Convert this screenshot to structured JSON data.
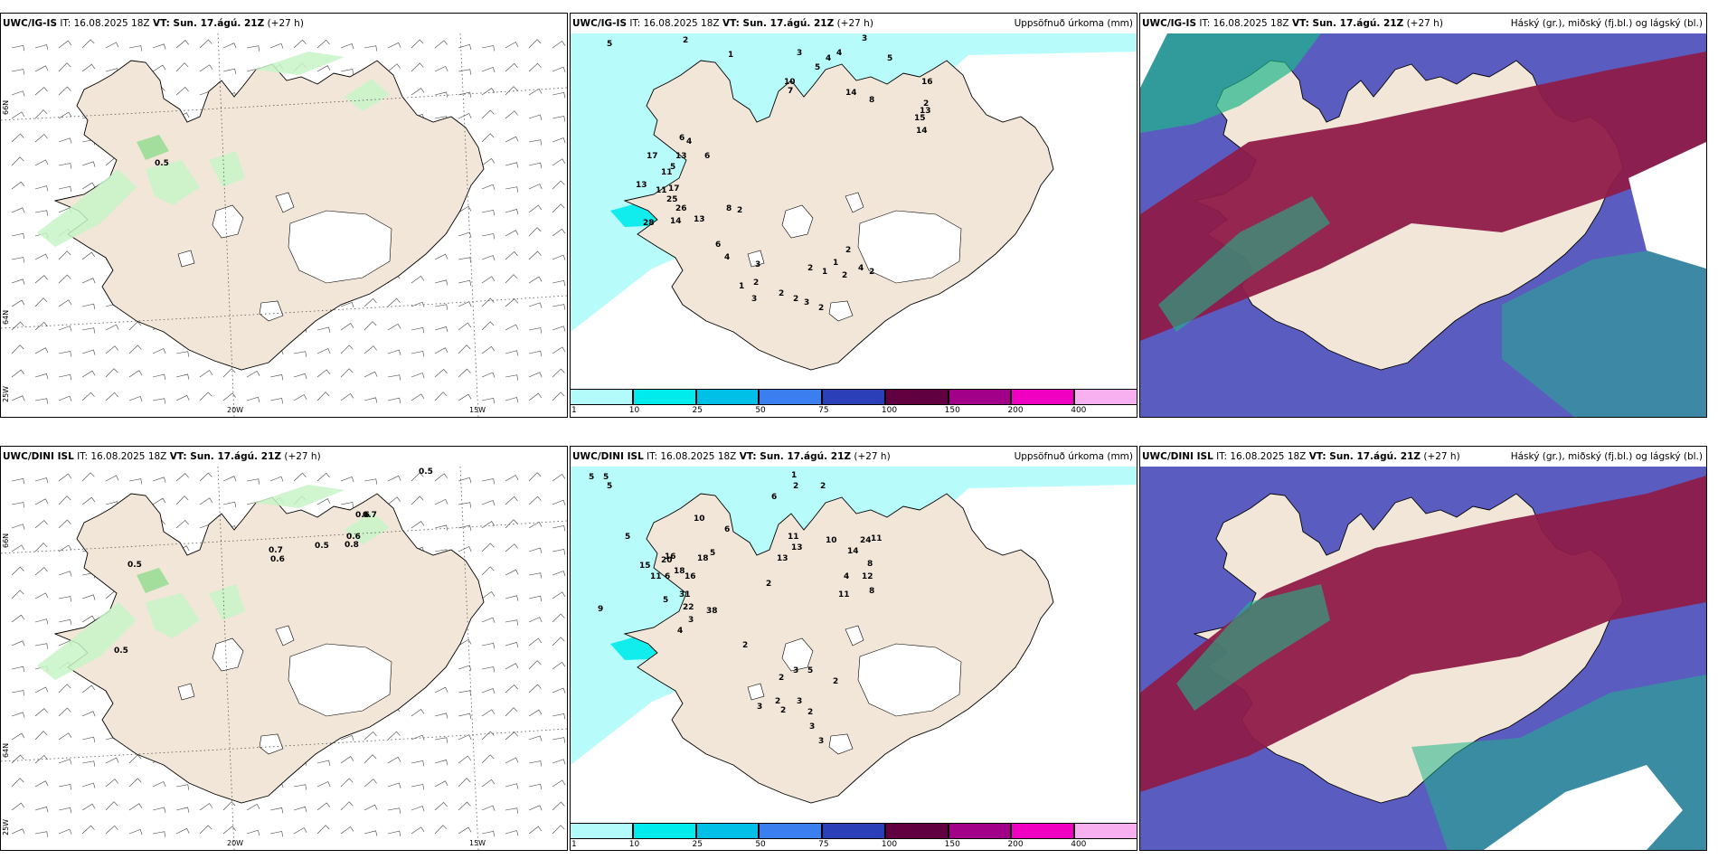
{
  "rows": [
    {
      "model": "UWC/IG-IS",
      "it": "IT: 16.08.2025 18Z",
      "vt_label": "VT: Sun. 17.ágú. 21Z",
      "lead": "(+27 h)",
      "wind_panel": {
        "contours": [
          "0.5"
        ]
      },
      "precip_panel": {
        "title": "Uppsöfnuð úrkoma (mm)",
        "labels": [
          "5",
          "2",
          "1",
          "3",
          "3",
          "4",
          "4",
          "5",
          "5",
          "10",
          "7",
          "14",
          "16",
          "2",
          "8",
          "13",
          "15",
          "14",
          "17",
          "13",
          "6",
          "5",
          "4",
          "11",
          "11",
          "17",
          "13",
          "6",
          "25",
          "26",
          "14",
          "13",
          "8",
          "2",
          "28",
          "6",
          "4",
          "3",
          "2",
          "2",
          "2",
          "2",
          "1",
          "2",
          "3",
          "2",
          "1",
          "4",
          "2",
          "2",
          "1",
          "3"
        ]
      },
      "cloud_panel": {
        "title": "Háský (gr.), miðský (fj.bl.) og lágský (bl.)"
      }
    },
    {
      "model": "UWC/DINI ISL",
      "it": "IT: 16.08.2025 18Z",
      "vt_label": "VT: Sun. 17.ágú. 21Z",
      "lead": "(+27 h)",
      "wind_panel": {
        "contours": [
          "0.5",
          "0.7",
          "0.6",
          "0.5",
          "0.8",
          "0.6",
          "0.7",
          "0.6",
          "0.5",
          "0.5"
        ]
      },
      "precip_panel": {
        "title": "Uppsöfnuð úrkoma (mm)",
        "labels": [
          "5",
          "5",
          "5",
          "2",
          "6",
          "2",
          "1",
          "5",
          "10",
          "11",
          "13",
          "6",
          "10",
          "24",
          "11",
          "14",
          "5",
          "15",
          "20",
          "16",
          "18",
          "11",
          "13",
          "8",
          "18",
          "16",
          "6",
          "4",
          "2",
          "12",
          "8",
          "11",
          "31",
          "22",
          "38",
          "9",
          "5",
          "3",
          "4",
          "2",
          "3",
          "3",
          "2",
          "3",
          "3",
          "2",
          "2",
          "3",
          "2",
          "5",
          "2"
        ]
      },
      "cloud_panel": {
        "title": "Háský (gr.), miðský (fj.bl.) og lágský (bl.)"
      }
    }
  ],
  "axes": {
    "lon_20w": "20W",
    "lon_15w": "15W",
    "lat_66n": "66N",
    "lat_64n": "64N",
    "lon_25w": "25W"
  },
  "colorbar": {
    "ticks": [
      "1",
      "10",
      "25",
      "50",
      "75",
      "100",
      "150",
      "200",
      "400"
    ],
    "colors": [
      "#b3fafa",
      "#00ebeb",
      "#00c0e8",
      "#3a7ef0",
      "#2a3fb8",
      "#600040",
      "#a3008a",
      "#f000c0",
      "#f8b0f0"
    ]
  },
  "colors": {
    "land": "#f2e6d8",
    "sea": "#ffffff",
    "precip_light": "#b8fbfb",
    "precip_heavy": "#11ecec",
    "wind_precip_light": "#c8f5c8",
    "wind_precip_mid": "#8fdc8f",
    "cloud_high": "#8e1b49",
    "cloud_mid": "#5b5cc0",
    "cloud_low": "#1fb58a"
  }
}
